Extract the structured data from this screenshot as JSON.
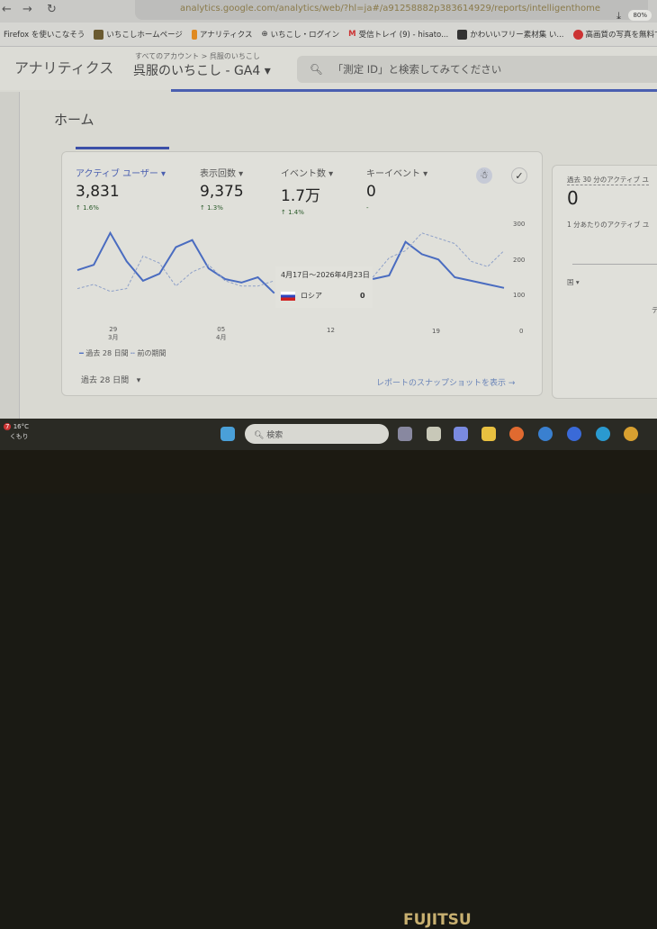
{
  "browser": {
    "url": "analytics.google.com/analytics/web/?hl=ja#/a91258882p383614929/reports/intelligenthome",
    "zoom": "80%"
  },
  "bookmarks": [
    {
      "label": "Firefox を使いこなそう"
    },
    {
      "label": "いちこしホームページ"
    },
    {
      "label": "アナリティクス"
    },
    {
      "label": "いちこし・ログイン"
    },
    {
      "label": "受信トレイ (9) - hisato..."
    },
    {
      "label": "かわいいフリー素材集 い..."
    },
    {
      "label": "高画質の写真を無料で..."
    }
  ],
  "header": {
    "app": "アナリティクス",
    "breadcrumb": "すべてのアカウント > 呉服のいちこし",
    "property": "呉服のいちこし - GA4 ▾",
    "search_placeholder": "「測定 ID」と検索してみてください"
  },
  "page": {
    "title": "ホーム"
  },
  "metrics": [
    {
      "label": "アクティブ ユーザー ▾",
      "value": "3,831",
      "delta": "↑ 1.6%"
    },
    {
      "label": "表示回数 ▾",
      "value": "9,375",
      "delta": "↑ 1.3%"
    },
    {
      "label": "イベント数 ▾",
      "value": "1.7万",
      "delta": "↑ 1.4%"
    },
    {
      "label": "キーイベント ▾",
      "value": "0",
      "delta": "-"
    }
  ],
  "tooltip": {
    "date_range": "4月17日～2026年4月23日",
    "country": "ロシア",
    "value": "0"
  },
  "chart_data": {
    "type": "line",
    "x_ticks": [
      {
        "day": "29",
        "month": "3月"
      },
      {
        "day": "05",
        "month": "4月"
      },
      {
        "day": "12",
        "month": ""
      },
      {
        "day": "19",
        "month": ""
      }
    ],
    "y_ticks": [
      "300",
      "200",
      "100",
      "0"
    ],
    "ylim": [
      0,
      300
    ],
    "series": [
      {
        "name": "過去 28 日間",
        "color": "#4a6cc0",
        "values": [
          170,
          185,
          275,
          195,
          140,
          160,
          235,
          255,
          175,
          145,
          135,
          150,
          105,
          null,
          null,
          null,
          null,
          null,
          145,
          155,
          250,
          215,
          200,
          150,
          140,
          130,
          120
        ]
      },
      {
        "name": "前の期間",
        "color": "#8ea0c8",
        "values": [
          118,
          130,
          110,
          118,
          210,
          190,
          125,
          165,
          185,
          140,
          125,
          125,
          140,
          null,
          null,
          null,
          null,
          null,
          150,
          205,
          225,
          275,
          260,
          245,
          195,
          180,
          225
        ]
      }
    ]
  },
  "legend": {
    "current": "過去 28 日間",
    "previous": "前の期間"
  },
  "footer": {
    "period": "過去 28 日間",
    "snapshot_link": "レポートのスナップショットを表示 →"
  },
  "realtime": {
    "title": "過去 30 分のアクティブ ユ",
    "value": "0",
    "subtitle": "1 分あたりのアクティブ ユ",
    "dropdown": "国 ▾",
    "partial": "デ"
  },
  "taskbar": {
    "temp": "16°C",
    "weather": "くもり",
    "search": "検索",
    "badge": "7"
  },
  "device": {
    "brand": "FUJITSU"
  }
}
